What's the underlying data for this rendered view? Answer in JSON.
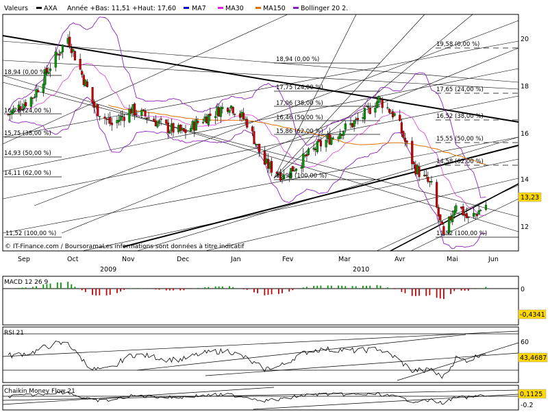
{
  "legend": {
    "label": "Valeurs",
    "symbol": "AXA",
    "range_text": "Année +Bas: 11,51 +Haut: 17,60",
    "items": [
      {
        "name": "MA7",
        "color": "#0000cc"
      },
      {
        "name": "MA30",
        "color": "#e020e0"
      },
      {
        "name": "MA150",
        "color": "#e07000"
      },
      {
        "name": "Bollinger 20 2.",
        "color": "#8020c0"
      }
    ]
  },
  "source_text": "© IT-Finance.com / BoursoramaLes informations sont données à titre indicatif",
  "month_labels": [
    "Sep",
    "Oct",
    "Nov",
    "Dec",
    "Jan",
    "Fev",
    "Mar",
    "Avr",
    "Mai",
    "Jun"
  ],
  "year_labels": [
    "2009",
    "2010"
  ],
  "colors": {
    "up": "#009900",
    "down": "#cc0000",
    "wick": "#000000",
    "fib": "#000000"
  },
  "chart_data": [
    {
      "type": "candlestick",
      "title": "AXA",
      "ylim": [
        11.4,
        20.6
      ],
      "yticks": [
        12,
        14,
        16,
        18,
        20
      ],
      "last_value": "13,23",
      "fibonacci_labels": [
        "18,94 (0,00 %)",
        "17,75 (24,00 %)",
        "17,06 (38,00 %)",
        "16,46 (50,00 %)",
        "15,86 (62,00 %)",
        "13,98 (100,00 %)",
        "18,94 (0,00 %)",
        "16,76 (24,00 %)",
        "15,75 (38,00 %)",
        "14,93 (50,00 %)",
        "14,11 (62,00 %)",
        "11,52 (100,00 %)",
        "19,58 (0,00 %)",
        "17,65 (24,00 %)",
        "16,52 (38,00 %)",
        "15,55 (50,00 %)",
        "14,58 (62,00 %)",
        "11,52 (100,00 %)"
      ],
      "close_series": [
        {
          "date": "2009-09-01",
          "value": 16.7
        },
        {
          "date": "2009-09-15",
          "value": 17.4
        },
        {
          "date": "2009-09-25",
          "value": 18.6
        },
        {
          "date": "2009-10-05",
          "value": 19.7
        },
        {
          "date": "2009-10-10",
          "value": 18.8
        },
        {
          "date": "2009-10-20",
          "value": 17.0
        },
        {
          "date": "2009-10-30",
          "value": 16.3
        },
        {
          "date": "2009-11-10",
          "value": 16.9
        },
        {
          "date": "2009-11-20",
          "value": 16.6
        },
        {
          "date": "2009-11-30",
          "value": 16.2
        },
        {
          "date": "2009-12-10",
          "value": 16.0
        },
        {
          "date": "2009-12-20",
          "value": 16.5
        },
        {
          "date": "2010-01-05",
          "value": 17.1
        },
        {
          "date": "2010-01-15",
          "value": 16.4
        },
        {
          "date": "2010-01-25",
          "value": 14.8
        },
        {
          "date": "2010-02-05",
          "value": 14.3
        },
        {
          "date": "2010-02-15",
          "value": 14.9
        },
        {
          "date": "2010-02-25",
          "value": 15.5
        },
        {
          "date": "2010-03-10",
          "value": 16.1
        },
        {
          "date": "2010-03-20",
          "value": 16.5
        },
        {
          "date": "2010-03-31",
          "value": 17.3
        },
        {
          "date": "2010-04-10",
          "value": 16.6
        },
        {
          "date": "2010-04-20",
          "value": 14.7
        },
        {
          "date": "2010-04-30",
          "value": 13.9
        },
        {
          "date": "2010-05-07",
          "value": 11.9
        },
        {
          "date": "2010-05-14",
          "value": 13.3
        },
        {
          "date": "2010-05-21",
          "value": 12.6
        },
        {
          "date": "2010-05-31",
          "value": 13.2
        }
      ]
    },
    {
      "type": "bar",
      "title": "MACD 12 26 9",
      "ylim": [
        -0.6,
        0.25
      ],
      "yticks": [
        0
      ],
      "last_value": "-0,4341"
    },
    {
      "type": "line",
      "title": "RSI 21",
      "ylim": [
        30,
        75
      ],
      "yticks": [
        60
      ],
      "last_value": "43,4687"
    },
    {
      "type": "line",
      "title": "Chaikin Money Flow 21",
      "ylim": [
        -0.3,
        0.2
      ],
      "yticks": [
        -0.2
      ],
      "last_value": "0,1125"
    }
  ]
}
